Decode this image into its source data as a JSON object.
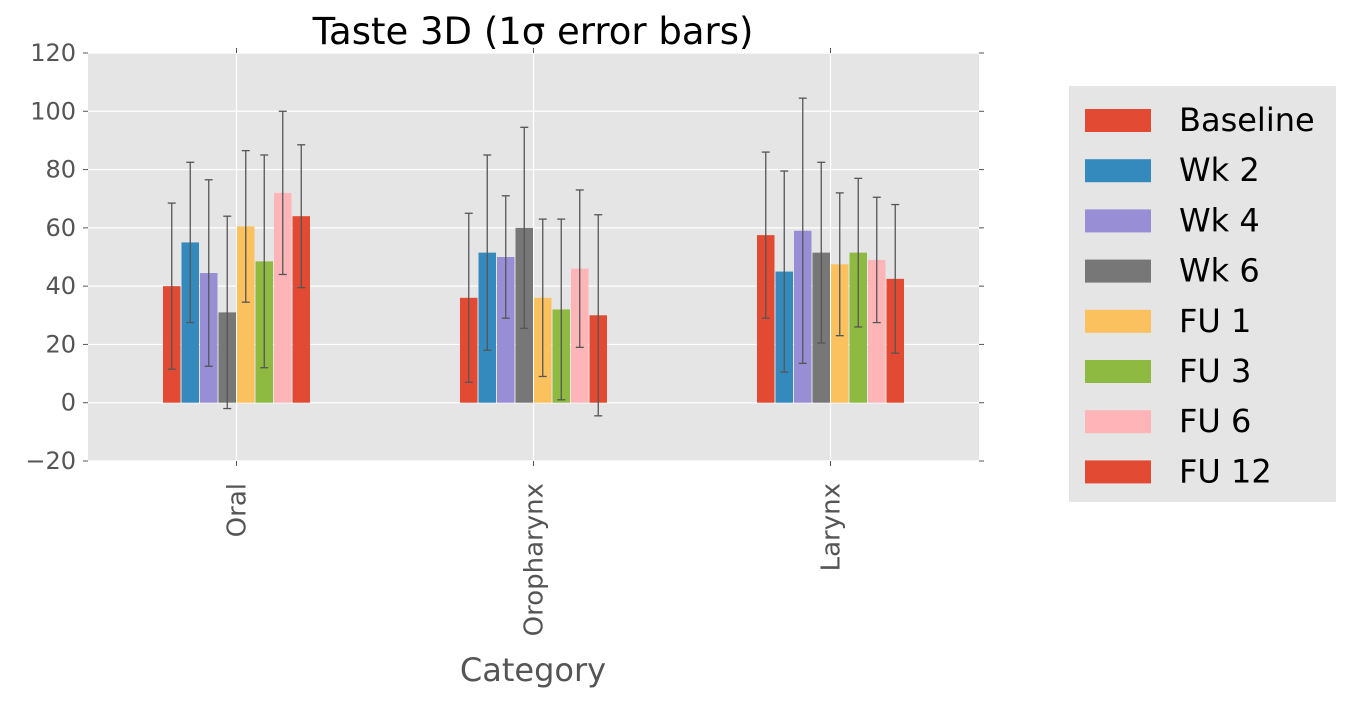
{
  "chart_data": {
    "type": "bar",
    "title": "Taste 3D (1σ error bars)",
    "xlabel": "Category",
    "ylabel": "",
    "categories": [
      "Oral",
      "Oropharynx",
      "Larynx"
    ],
    "ylim": [
      -20,
      120
    ],
    "yticks": [
      -20,
      0,
      20,
      40,
      60,
      80,
      100,
      120
    ],
    "ytick_labels": [
      "−20",
      "0",
      "20",
      "40",
      "60",
      "80",
      "100",
      "120"
    ],
    "grid": true,
    "legend_position": "right",
    "error_bars": "1 sigma",
    "series": [
      {
        "name": "Baseline",
        "color": "#E24A33",
        "values": [
          40,
          36,
          57.5
        ],
        "errors": [
          28.5,
          29,
          28.5
        ]
      },
      {
        "name": "Wk 2",
        "color": "#348ABD",
        "values": [
          55,
          51.5,
          45
        ],
        "errors": [
          27.5,
          33.5,
          34.5
        ]
      },
      {
        "name": "Wk 4",
        "color": "#988ED5",
        "values": [
          44.5,
          50,
          59
        ],
        "errors": [
          32,
          21,
          45.5
        ]
      },
      {
        "name": "Wk 6",
        "color": "#777777",
        "values": [
          31,
          60,
          51.5
        ],
        "errors": [
          33,
          34.5,
          31
        ]
      },
      {
        "name": "FU 1",
        "color": "#FBC15E",
        "values": [
          60.5,
          36,
          47.5
        ],
        "errors": [
          26,
          27,
          24.5
        ]
      },
      {
        "name": "FU 3",
        "color": "#8EBA42",
        "values": [
          48.5,
          32,
          51.5
        ],
        "errors": [
          36.5,
          31,
          25.5
        ]
      },
      {
        "name": "FU 6",
        "color": "#FFB5B8",
        "values": [
          72,
          46,
          49
        ],
        "errors": [
          28,
          27,
          21.5
        ]
      },
      {
        "name": "FU 12",
        "color": "#E24A33",
        "values": [
          64,
          30,
          42.5
        ],
        "errors": [
          24.5,
          34.5,
          25.5
        ]
      }
    ]
  }
}
